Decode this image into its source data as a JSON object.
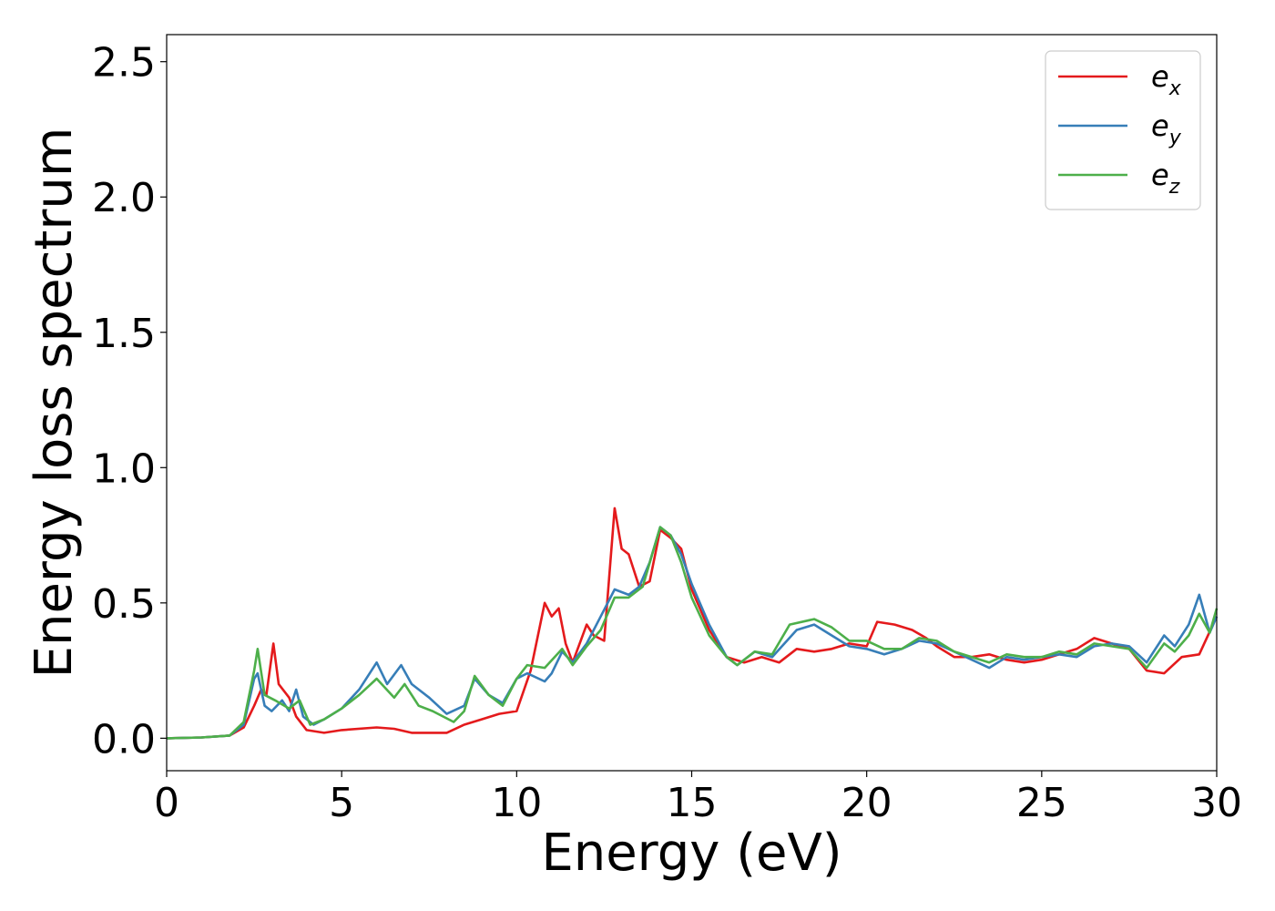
{
  "chart_data": {
    "type": "line",
    "xlabel": "Energy (eV)",
    "ylabel": "Energy loss spectrum",
    "xlim": [
      0,
      30
    ],
    "ylim": [
      -0.12,
      2.6
    ],
    "xticks": [
      "0",
      "5",
      "10",
      "15",
      "20",
      "25",
      "30"
    ],
    "yticks": [
      "0.0",
      "0.5",
      "1.0",
      "1.5",
      "2.0",
      "2.5"
    ],
    "grid": false,
    "legend_position": "top-right",
    "series": [
      {
        "name": "e",
        "subscript": "x",
        "color": "#e41a1c",
        "points": [
          [
            0,
            0
          ],
          [
            1,
            0.003
          ],
          [
            1.8,
            0.01
          ],
          [
            2.2,
            0.04
          ],
          [
            2.5,
            0.12
          ],
          [
            2.7,
            0.18
          ],
          [
            2.85,
            0.16
          ],
          [
            3.05,
            0.35
          ],
          [
            3.2,
            0.2
          ],
          [
            3.5,
            0.15
          ],
          [
            3.7,
            0.08
          ],
          [
            4.0,
            0.03
          ],
          [
            4.5,
            0.02
          ],
          [
            5,
            0.03
          ],
          [
            6,
            0.04
          ],
          [
            6.5,
            0.035
          ],
          [
            7,
            0.02
          ],
          [
            8,
            0.02
          ],
          [
            8.5,
            0.05
          ],
          [
            9,
            0.07
          ],
          [
            9.5,
            0.09
          ],
          [
            10,
            0.1
          ],
          [
            10.4,
            0.25
          ],
          [
            10.8,
            0.5
          ],
          [
            11,
            0.45
          ],
          [
            11.2,
            0.48
          ],
          [
            11.4,
            0.35
          ],
          [
            11.6,
            0.28
          ],
          [
            12,
            0.42
          ],
          [
            12.2,
            0.38
          ],
          [
            12.5,
            0.36
          ],
          [
            12.8,
            0.85
          ],
          [
            13.0,
            0.7
          ],
          [
            13.2,
            0.68
          ],
          [
            13.5,
            0.56
          ],
          [
            13.8,
            0.58
          ],
          [
            14.1,
            0.77
          ],
          [
            14.4,
            0.74
          ],
          [
            14.7,
            0.7
          ],
          [
            15,
            0.55
          ],
          [
            15.5,
            0.4
          ],
          [
            16,
            0.3
          ],
          [
            16.5,
            0.28
          ],
          [
            17,
            0.3
          ],
          [
            17.5,
            0.28
          ],
          [
            18,
            0.33
          ],
          [
            18.5,
            0.32
          ],
          [
            19,
            0.33
          ],
          [
            19.5,
            0.35
          ],
          [
            20,
            0.34
          ],
          [
            20.3,
            0.43
          ],
          [
            20.8,
            0.42
          ],
          [
            21.3,
            0.4
          ],
          [
            21.7,
            0.37
          ],
          [
            22,
            0.34
          ],
          [
            22.5,
            0.3
          ],
          [
            23,
            0.3
          ],
          [
            23.5,
            0.31
          ],
          [
            24,
            0.29
          ],
          [
            24.5,
            0.28
          ],
          [
            25,
            0.29
          ],
          [
            25.5,
            0.31
          ],
          [
            26,
            0.33
          ],
          [
            26.5,
            0.37
          ],
          [
            27,
            0.35
          ],
          [
            27.5,
            0.33
          ],
          [
            28,
            0.25
          ],
          [
            28.5,
            0.24
          ],
          [
            29,
            0.3
          ],
          [
            29.5,
            0.31
          ],
          [
            30,
            0.45
          ]
        ]
      },
      {
        "name": "e",
        "subscript": "y",
        "color": "#377eb8",
        "points": [
          [
            0,
            0
          ],
          [
            1,
            0.003
          ],
          [
            1.8,
            0.01
          ],
          [
            2.2,
            0.05
          ],
          [
            2.5,
            0.22
          ],
          [
            2.6,
            0.24
          ],
          [
            2.8,
            0.12
          ],
          [
            3.0,
            0.1
          ],
          [
            3.3,
            0.14
          ],
          [
            3.5,
            0.1
          ],
          [
            3.7,
            0.18
          ],
          [
            3.9,
            0.08
          ],
          [
            4.2,
            0.05
          ],
          [
            4.5,
            0.07
          ],
          [
            5,
            0.11
          ],
          [
            5.5,
            0.18
          ],
          [
            6,
            0.28
          ],
          [
            6.3,
            0.2
          ],
          [
            6.7,
            0.27
          ],
          [
            7,
            0.2
          ],
          [
            7.5,
            0.15
          ],
          [
            8,
            0.09
          ],
          [
            8.5,
            0.12
          ],
          [
            8.8,
            0.22
          ],
          [
            9.2,
            0.16
          ],
          [
            9.6,
            0.13
          ],
          [
            10,
            0.22
          ],
          [
            10.3,
            0.24
          ],
          [
            10.8,
            0.21
          ],
          [
            11,
            0.24
          ],
          [
            11.3,
            0.32
          ],
          [
            11.6,
            0.28
          ],
          [
            12,
            0.35
          ],
          [
            12.4,
            0.45
          ],
          [
            12.8,
            0.55
          ],
          [
            13.2,
            0.53
          ],
          [
            13.5,
            0.56
          ],
          [
            13.8,
            0.65
          ],
          [
            14.1,
            0.78
          ],
          [
            14.4,
            0.75
          ],
          [
            14.7,
            0.68
          ],
          [
            15,
            0.57
          ],
          [
            15.5,
            0.42
          ],
          [
            16,
            0.3
          ],
          [
            16.3,
            0.27
          ],
          [
            16.8,
            0.32
          ],
          [
            17.3,
            0.3
          ],
          [
            18,
            0.4
          ],
          [
            18.5,
            0.42
          ],
          [
            19,
            0.38
          ],
          [
            19.5,
            0.34
          ],
          [
            20,
            0.33
          ],
          [
            20.5,
            0.31
          ],
          [
            21,
            0.33
          ],
          [
            21.5,
            0.36
          ],
          [
            22,
            0.35
          ],
          [
            22.5,
            0.32
          ],
          [
            23,
            0.29
          ],
          [
            23.5,
            0.26
          ],
          [
            24,
            0.3
          ],
          [
            24.5,
            0.29
          ],
          [
            25,
            0.3
          ],
          [
            25.5,
            0.31
          ],
          [
            26,
            0.3
          ],
          [
            26.5,
            0.34
          ],
          [
            27,
            0.35
          ],
          [
            27.5,
            0.34
          ],
          [
            28,
            0.28
          ],
          [
            28.5,
            0.38
          ],
          [
            28.8,
            0.34
          ],
          [
            29.2,
            0.42
          ],
          [
            29.5,
            0.53
          ],
          [
            29.8,
            0.39
          ],
          [
            30,
            0.45
          ]
        ]
      },
      {
        "name": "e",
        "subscript": "z",
        "color": "#4daf4a",
        "points": [
          [
            0,
            0
          ],
          [
            1,
            0.003
          ],
          [
            1.8,
            0.01
          ],
          [
            2.2,
            0.06
          ],
          [
            2.5,
            0.25
          ],
          [
            2.6,
            0.33
          ],
          [
            2.8,
            0.16
          ],
          [
            3.1,
            0.14
          ],
          [
            3.5,
            0.11
          ],
          [
            3.8,
            0.14
          ],
          [
            4.1,
            0.05
          ],
          [
            4.5,
            0.07
          ],
          [
            5,
            0.11
          ],
          [
            5.5,
            0.16
          ],
          [
            6,
            0.22
          ],
          [
            6.5,
            0.15
          ],
          [
            6.8,
            0.2
          ],
          [
            7.2,
            0.12
          ],
          [
            7.6,
            0.1
          ],
          [
            8.2,
            0.06
          ],
          [
            8.5,
            0.1
          ],
          [
            8.8,
            0.23
          ],
          [
            9.2,
            0.16
          ],
          [
            9.6,
            0.12
          ],
          [
            10,
            0.22
          ],
          [
            10.3,
            0.27
          ],
          [
            10.8,
            0.26
          ],
          [
            11.3,
            0.33
          ],
          [
            11.6,
            0.27
          ],
          [
            12,
            0.34
          ],
          [
            12.4,
            0.4
          ],
          [
            12.8,
            0.52
          ],
          [
            13.2,
            0.52
          ],
          [
            13.6,
            0.56
          ],
          [
            14.1,
            0.78
          ],
          [
            14.4,
            0.75
          ],
          [
            14.7,
            0.65
          ],
          [
            15,
            0.52
          ],
          [
            15.5,
            0.38
          ],
          [
            16,
            0.3
          ],
          [
            16.3,
            0.27
          ],
          [
            16.8,
            0.32
          ],
          [
            17.3,
            0.31
          ],
          [
            17.8,
            0.42
          ],
          [
            18.5,
            0.44
          ],
          [
            19,
            0.41
          ],
          [
            19.5,
            0.36
          ],
          [
            20,
            0.36
          ],
          [
            20.5,
            0.33
          ],
          [
            21,
            0.33
          ],
          [
            21.5,
            0.37
          ],
          [
            22,
            0.36
          ],
          [
            22.5,
            0.32
          ],
          [
            23,
            0.3
          ],
          [
            23.5,
            0.28
          ],
          [
            24,
            0.31
          ],
          [
            24.5,
            0.3
          ],
          [
            25,
            0.3
          ],
          [
            25.5,
            0.32
          ],
          [
            26,
            0.31
          ],
          [
            26.5,
            0.35
          ],
          [
            27,
            0.34
          ],
          [
            27.5,
            0.33
          ],
          [
            28,
            0.26
          ],
          [
            28.5,
            0.35
          ],
          [
            28.8,
            0.32
          ],
          [
            29.2,
            0.38
          ],
          [
            29.5,
            0.46
          ],
          [
            29.8,
            0.39
          ],
          [
            30,
            0.48
          ]
        ]
      }
    ]
  }
}
